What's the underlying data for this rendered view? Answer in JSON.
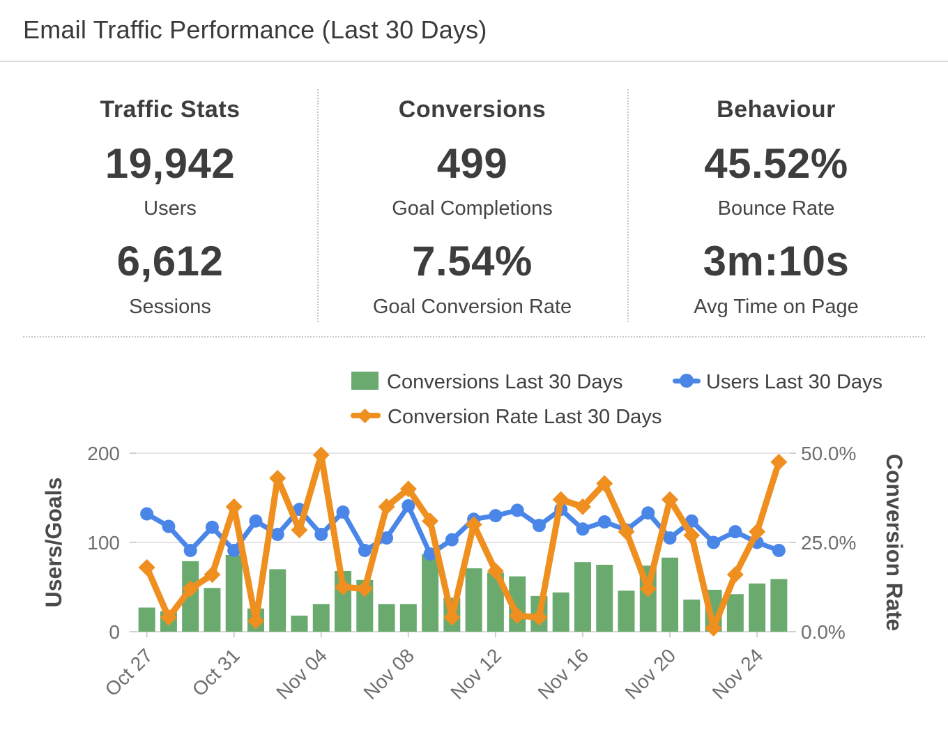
{
  "header": {
    "title": "Email Traffic Performance (Last 30 Days)"
  },
  "stats": {
    "columns": [
      {
        "heading": "Traffic Stats",
        "value1": "19,942",
        "label1": "Users",
        "value2": "6,612",
        "label2": "Sessions"
      },
      {
        "heading": "Conversions",
        "value1": "499",
        "label1": "Goal Completions",
        "value2": "7.54%",
        "label2": "Goal Conversion Rate"
      },
      {
        "heading": "Behaviour",
        "value1": "45.52%",
        "label1": "Bounce Rate",
        "value2": "3m:10s",
        "label2": "Avg Time on Page"
      }
    ]
  },
  "colors": {
    "bar_green": "#6aaa6e",
    "line_blue": "#4a86e8",
    "line_orange": "#ee8f1f",
    "gridline": "#e4e4e4",
    "baseline": "#d8d8d8",
    "tick_text": "#6e6e6e",
    "axis_title_text": "#4a4a4a"
  },
  "chart_data": {
    "type": "bar+line combo, dual axis",
    "categories": [
      "Oct 27",
      "Oct 28",
      "Oct 29",
      "Oct 30",
      "Oct 31",
      "Nov 01",
      "Nov 02",
      "Nov 03",
      "Nov 04",
      "Nov 05",
      "Nov 06",
      "Nov 07",
      "Nov 08",
      "Nov 09",
      "Nov 10",
      "Nov 11",
      "Nov 12",
      "Nov 13",
      "Nov 14",
      "Nov 15",
      "Nov 16",
      "Nov 17",
      "Nov 18",
      "Nov 19",
      "Nov 20",
      "Nov 21",
      "Nov 22",
      "Nov 23",
      "Nov 24",
      "Nov 25"
    ],
    "series": [
      {
        "name": "Conversions Last 30 Days",
        "type": "bar",
        "axis": "left",
        "color": "#6aaa6e",
        "values": [
          27,
          23,
          79,
          49,
          86,
          26,
          70,
          18,
          31,
          68,
          58,
          31,
          31,
          87,
          38,
          71,
          66,
          62,
          40,
          44,
          78,
          75,
          46,
          74,
          83,
          36,
          47,
          42,
          54,
          59
        ]
      },
      {
        "name": "Users Last 30 Days",
        "type": "line",
        "marker": "circle",
        "axis": "left",
        "color": "#4a86e8",
        "values": [
          132,
          118,
          91,
          117,
          91,
          124,
          109,
          137,
          109,
          134,
          91,
          105,
          141,
          87,
          103,
          126,
          130,
          136,
          119,
          137,
          115,
          123,
          114,
          133,
          105,
          124,
          100,
          112,
          100,
          91
        ]
      },
      {
        "name": "Conversion Rate Last 30 Days",
        "type": "line",
        "marker": "diamond",
        "axis": "right",
        "color": "#ee8f1f",
        "values": [
          18,
          4,
          12,
          16,
          35,
          3,
          43,
          28.5,
          49.5,
          12.5,
          12,
          35,
          40,
          31,
          4,
          30,
          17,
          4.5,
          4,
          37,
          35,
          41.5,
          28,
          12,
          37,
          27,
          1,
          16,
          28,
          47.5
        ]
      }
    ],
    "left_axis": {
      "title": "Users/Goals",
      "min": 0,
      "max": 200,
      "ticks": [
        0,
        100,
        200
      ],
      "tick_labels": [
        "0",
        "100",
        "200"
      ]
    },
    "right_axis": {
      "title": "Conversion Rate",
      "min": 0,
      "max": 50,
      "ticks": [
        0,
        25,
        50
      ],
      "tick_labels": [
        "0.0%",
        "25.0%",
        "50.0%"
      ]
    },
    "x_tick_every": 4,
    "grid": true,
    "legend_position": "top"
  }
}
